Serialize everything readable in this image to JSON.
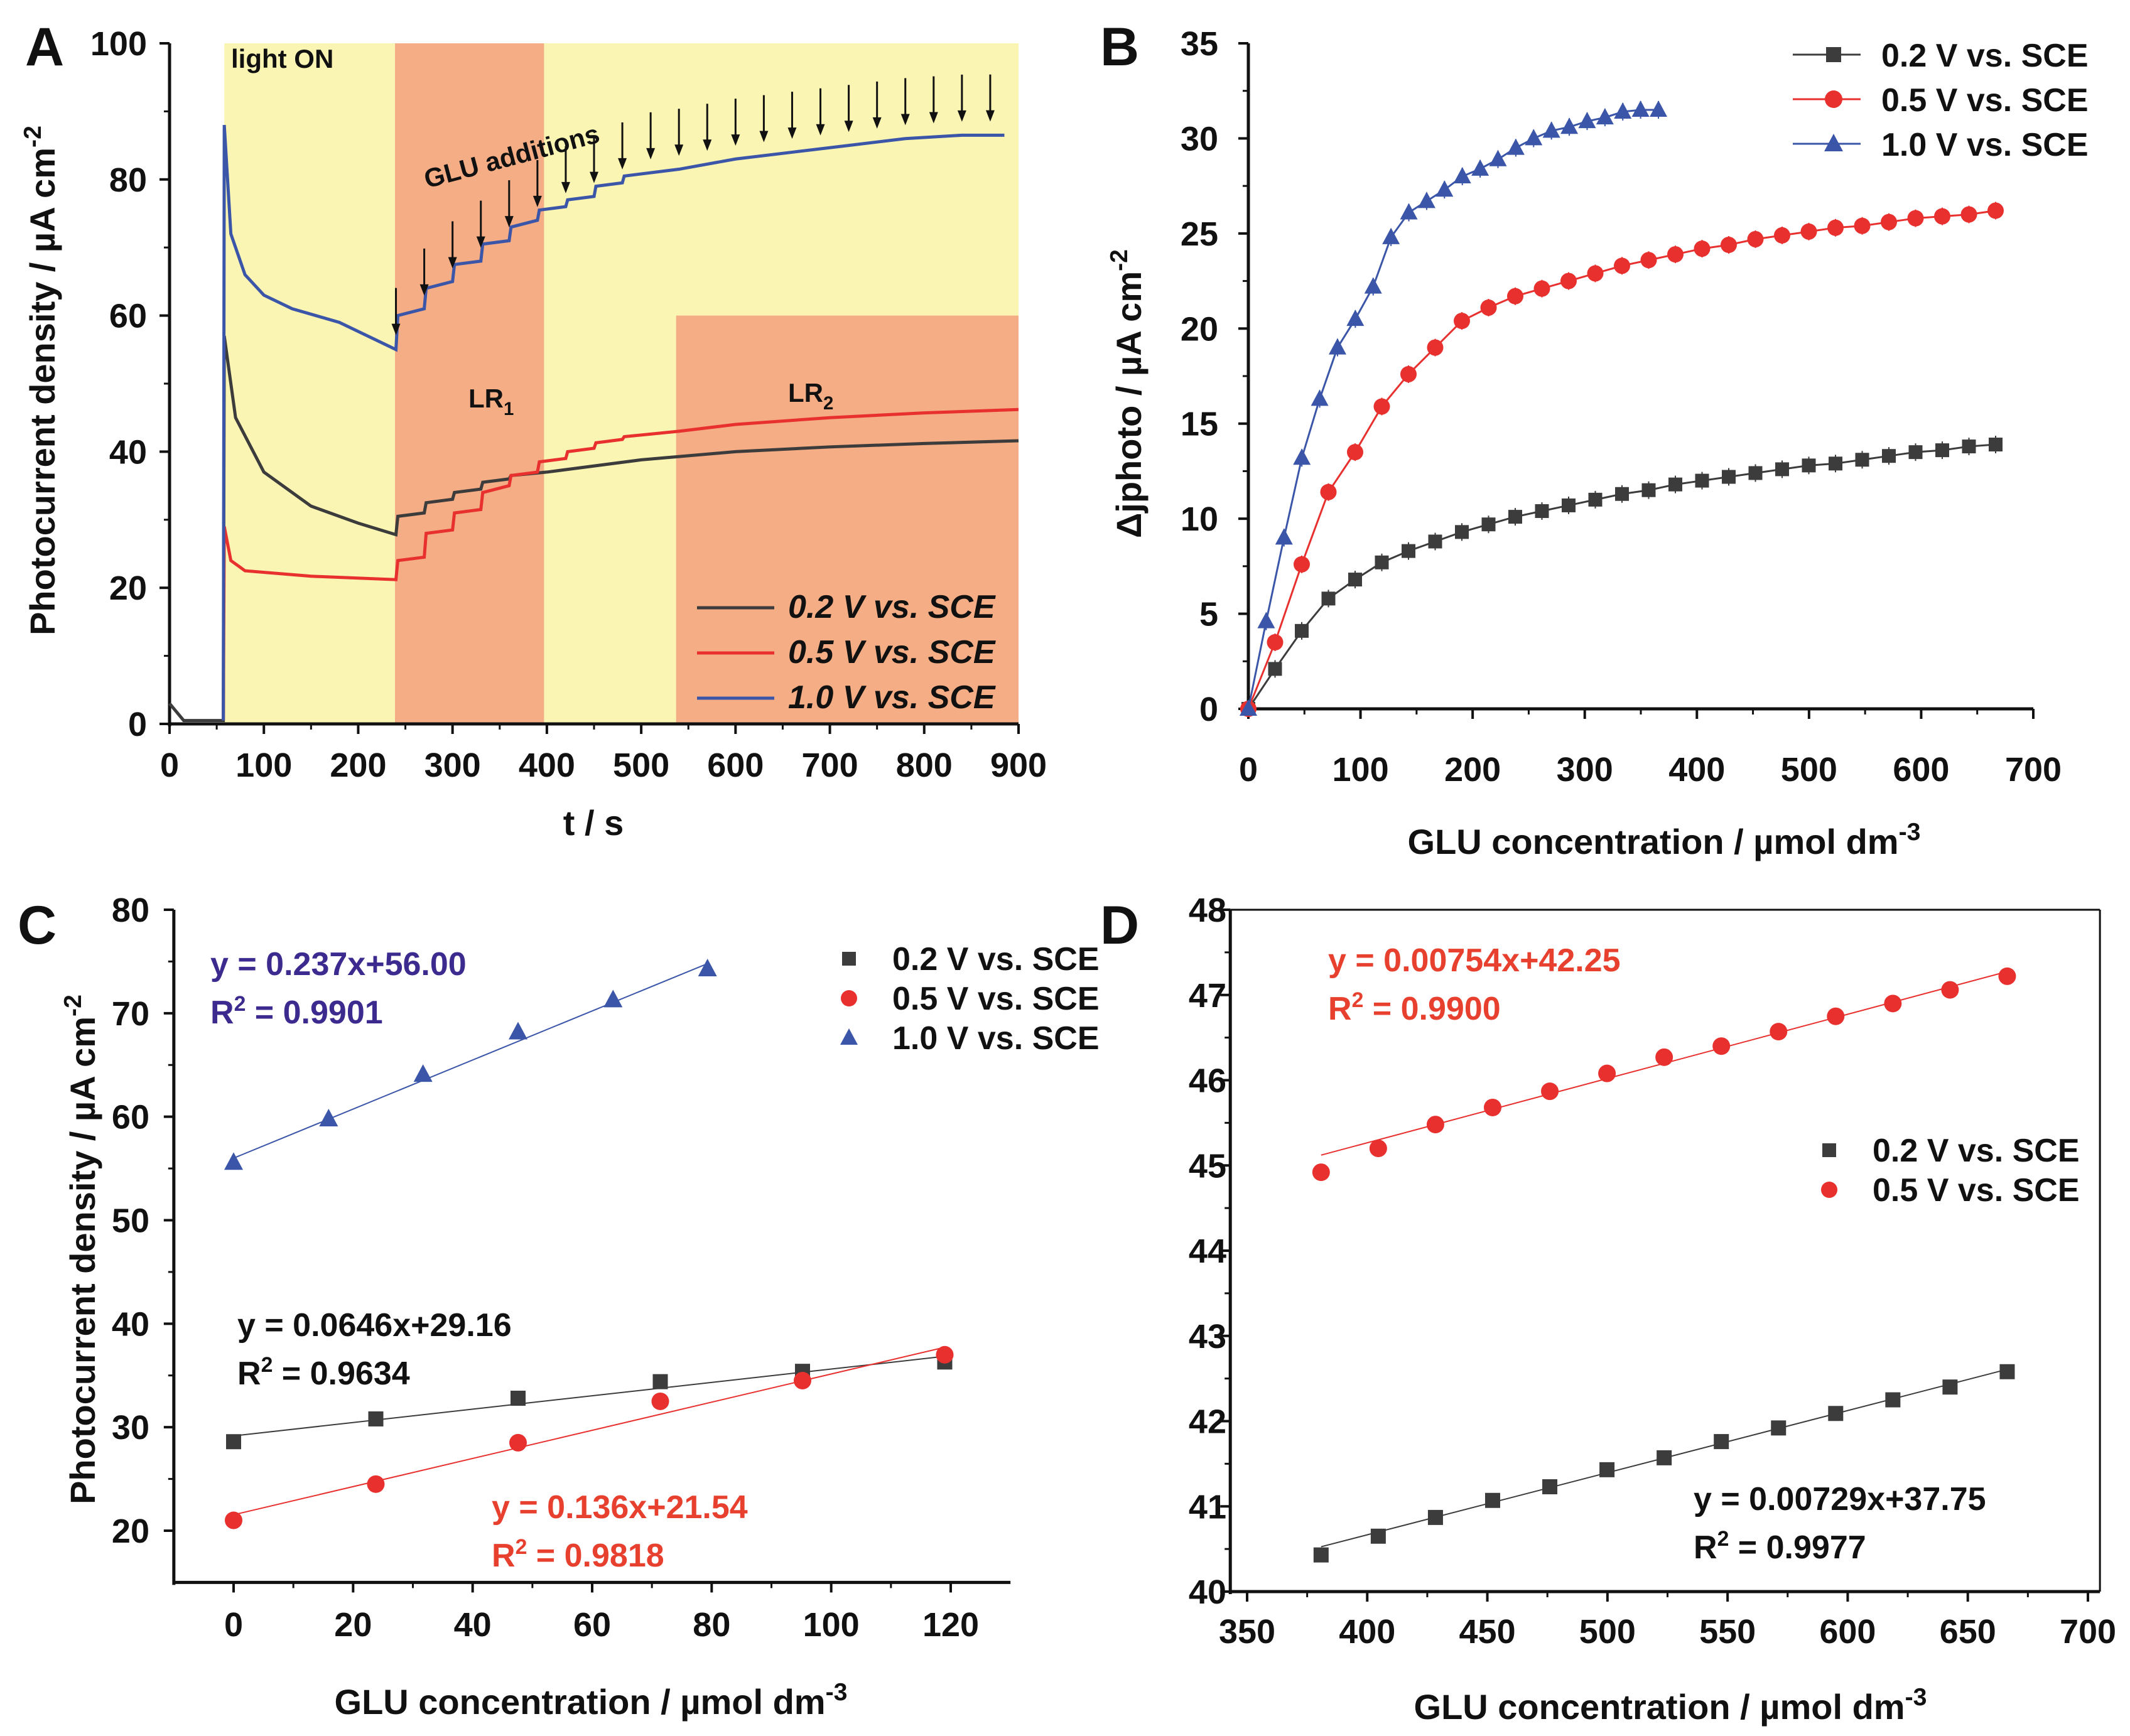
{
  "colors": {
    "black": "#3c3c3c",
    "red": "#e8312f",
    "blue": "#3b56a8",
    "yellow": "#fbf5b4",
    "orange": "#f4ad84",
    "eq_blue": "#3d2a8f",
    "eq_red": "#e8402e"
  },
  "chart_data": [
    {
      "panel": "A",
      "type": "line",
      "xlabel": "t / s",
      "ylabel": "Photocurrent density / µA cm",
      "ylabel_sup": "-2",
      "xlim": [
        0,
        900
      ],
      "ylim": [
        0,
        100
      ],
      "xticks": [
        "0",
        "100",
        "200",
        "300",
        "400",
        "500",
        "600",
        "700",
        "800",
        "900"
      ],
      "yticks": [
        "0",
        "20",
        "40",
        "60",
        "80",
        "100"
      ],
      "regions": [
        {
          "name": "light ON",
          "t": [
            58,
            900
          ],
          "y": [
            0,
            100
          ],
          "color": "yellow"
        },
        {
          "name": "LR1",
          "t": [
            239,
            397
          ],
          "y": [
            0,
            100
          ],
          "color": "orange"
        },
        {
          "name": "LR2",
          "t": [
            537,
            900
          ],
          "y": [
            0,
            60
          ],
          "color": "orange"
        }
      ],
      "annotations": {
        "light_on": "light ON",
        "glu_additions": "GLU additions",
        "lr1": "LR",
        "lr1_sub": "1",
        "lr2": "LR",
        "lr2_sub": "2"
      },
      "arrow_times": [
        240,
        270,
        300,
        330,
        360,
        390,
        420,
        450,
        480,
        510,
        540,
        570,
        600,
        630,
        660,
        690,
        720,
        750,
        780,
        810,
        840,
        870
      ],
      "series": [
        {
          "name": "0.2 V vs. SCE",
          "color": "black",
          "points": [
            [
              0,
              3
            ],
            [
              15,
              0.5
            ],
            [
              57,
              0.5
            ],
            [
              58,
              57
            ],
            [
              70,
              45
            ],
            [
              100,
              37
            ],
            [
              150,
              32
            ],
            [
              200,
              29.5
            ],
            [
              240,
              27.8
            ],
            [
              242,
              30.5
            ],
            [
              270,
              31
            ],
            [
              272,
              32.5
            ],
            [
              300,
              33
            ],
            [
              302,
              34
            ],
            [
              330,
              34.5
            ],
            [
              332,
              35.5
            ],
            [
              360,
              36
            ],
            [
              362,
              36.5
            ],
            [
              400,
              37
            ],
            [
              500,
              38.8
            ],
            [
              600,
              40
            ],
            [
              700,
              40.7
            ],
            [
              800,
              41.2
            ],
            [
              900,
              41.6
            ]
          ]
        },
        {
          "name": "0.5 V vs. SCE",
          "color": "red",
          "points": [
            [
              57,
              0.5
            ],
            [
              58,
              29
            ],
            [
              65,
              24
            ],
            [
              80,
              22.5
            ],
            [
              150,
              21.7
            ],
            [
              240,
              21.2
            ],
            [
              242,
              24
            ],
            [
              270,
              24.5
            ],
            [
              272,
              28
            ],
            [
              300,
              28.5
            ],
            [
              302,
              31
            ],
            [
              330,
              31.5
            ],
            [
              332,
              34
            ],
            [
              360,
              35
            ],
            [
              362,
              36.5
            ],
            [
              390,
              37
            ],
            [
              392,
              38.5
            ],
            [
              420,
              39
            ],
            [
              422,
              40
            ],
            [
              450,
              40.5
            ],
            [
              452,
              41.3
            ],
            [
              480,
              41.8
            ],
            [
              482,
              42.2
            ],
            [
              540,
              43
            ],
            [
              600,
              44
            ],
            [
              700,
              45
            ],
            [
              800,
              45.7
            ],
            [
              900,
              46.2
            ]
          ]
        },
        {
          "name": "1.0 V vs. SCE",
          "color": "blue",
          "points": [
            [
              57,
              0.5
            ],
            [
              58,
              88
            ],
            [
              65,
              72
            ],
            [
              80,
              66
            ],
            [
              100,
              63
            ],
            [
              130,
              61
            ],
            [
              180,
              59
            ],
            [
              240,
              55
            ],
            [
              242,
              60
            ],
            [
              270,
              61
            ],
            [
              272,
              64
            ],
            [
              300,
              65
            ],
            [
              302,
              67.5
            ],
            [
              330,
              68
            ],
            [
              332,
              70.5
            ],
            [
              360,
              71
            ],
            [
              362,
              73
            ],
            [
              390,
              74
            ],
            [
              392,
              75.5
            ],
            [
              420,
              76
            ],
            [
              422,
              77
            ],
            [
              450,
              77.5
            ],
            [
              452,
              79
            ],
            [
              480,
              79.5
            ],
            [
              482,
              80.5
            ],
            [
              540,
              81.5
            ],
            [
              600,
              83
            ],
            [
              660,
              84
            ],
            [
              720,
              85
            ],
            [
              780,
              86
            ],
            [
              840,
              86.5
            ],
            [
              885,
              86.5
            ]
          ]
        }
      ]
    },
    {
      "panel": "B",
      "type": "line",
      "xlabel": "GLU concentration / µmol dm",
      "xlabel_sup": "-3",
      "ylabel": "Δjphoto / µA cm",
      "ylabel_sup": "-2",
      "xlim": [
        0,
        700
      ],
      "ylim": [
        0,
        35
      ],
      "xticks": [
        "0",
        "100",
        "200",
        "300",
        "400",
        "500",
        "600",
        "700"
      ],
      "yticks": [
        "0",
        "5",
        "10",
        "15",
        "20",
        "25",
        "30",
        "35"
      ],
      "series": [
        {
          "name": "0.2 V vs. SCE",
          "color": "black",
          "marker": "square",
          "x_step": 23.8,
          "values": [
            0,
            2.1,
            4.1,
            5.8,
            6.8,
            7.7,
            8.3,
            8.8,
            9.3,
            9.7,
            10.1,
            10.4,
            10.7,
            11.0,
            11.3,
            11.5,
            11.8,
            12.0,
            12.2,
            12.4,
            12.6,
            12.8,
            12.9,
            13.1,
            13.3,
            13.5,
            13.6,
            13.8,
            13.9
          ]
        },
        {
          "name": "0.5 V vs. SCE",
          "color": "red",
          "marker": "circle",
          "x_step": 23.8,
          "values": [
            0,
            3.5,
            7.6,
            11.4,
            13.5,
            15.9,
            17.6,
            19.0,
            20.4,
            21.1,
            21.7,
            22.1,
            22.5,
            22.9,
            23.3,
            23.6,
            23.9,
            24.2,
            24.4,
            24.7,
            24.9,
            25.1,
            25.3,
            25.4,
            25.6,
            25.8,
            25.9,
            26.0,
            26.2
          ]
        },
        {
          "name": "1.0 V vs. SCE",
          "color": "blue",
          "marker": "triangle",
          "x_step": 15.9,
          "values": [
            0,
            4.6,
            9.0,
            13.2,
            16.3,
            19.0,
            20.5,
            22.2,
            24.8,
            26.1,
            26.7,
            27.3,
            28.0,
            28.4,
            28.9,
            29.5,
            30.0,
            30.4,
            30.6,
            30.9,
            31.1,
            31.4,
            31.5,
            31.5
          ]
        }
      ]
    },
    {
      "panel": "C",
      "type": "scatter",
      "xlabel": "GLU concentration / µmol dm",
      "xlabel_sup": "-3",
      "ylabel": "Photocurrent density / µA cm",
      "ylabel_sup": "-2",
      "xlim": [
        -10,
        130
      ],
      "ylim": [
        15,
        80
      ],
      "xticks": [
        "0",
        "20",
        "40",
        "60",
        "80",
        "100",
        "120"
      ],
      "yticks": [
        "20",
        "30",
        "40",
        "50",
        "60",
        "70",
        "80"
      ],
      "series": [
        {
          "name": "0.2 V vs. SCE",
          "color": "black",
          "marker": "square",
          "x": [
            0,
            23.8,
            47.6,
            71.4,
            95.2,
            119
          ],
          "y": [
            28.6,
            30.8,
            32.8,
            34.4,
            35.4,
            36.3
          ],
          "fit": {
            "slope": 0.0646,
            "intercept": 29.16,
            "eq": "y = 0.0646x+29.16",
            "r2_label": "R",
            "r2_sup": "2",
            "r2_val": " = 0.9634"
          }
        },
        {
          "name": "0.5 V vs. SCE",
          "color": "red",
          "marker": "circle",
          "x": [
            0,
            23.8,
            47.6,
            71.4,
            95.2,
            119
          ],
          "y": [
            21.0,
            24.5,
            28.5,
            32.5,
            34.5,
            37.0
          ],
          "fit": {
            "slope": 0.136,
            "intercept": 21.54,
            "eq": "y = 0.136x+21.54",
            "r2_label": "R",
            "r2_sup": "2",
            "r2_val": " = 0.9818"
          }
        },
        {
          "name": "1.0 V vs. SCE",
          "color": "blue",
          "marker": "triangle",
          "x": [
            0,
            15.9,
            31.7,
            47.6,
            63.5,
            79.3
          ],
          "y": [
            55.6,
            59.8,
            64.1,
            68.2,
            71.3,
            74.3
          ],
          "fit": {
            "slope": 0.237,
            "intercept": 56.0,
            "eq": "y = 0.237x+56.00",
            "r2_label": "R",
            "r2_sup": "2",
            "r2_val": " = 0.9901"
          }
        }
      ]
    },
    {
      "panel": "D",
      "type": "scatter",
      "xlabel": "GLU concentration / µmol dm",
      "xlabel_sup": "-3",
      "xlim": [
        343,
        705
      ],
      "ylim": [
        40,
        48
      ],
      "xticks": [
        "350",
        "400",
        "450",
        "500",
        "550",
        "600",
        "650",
        "700"
      ],
      "yticks": [
        "40",
        "41",
        "42",
        "43",
        "44",
        "45",
        "46",
        "47",
        "48"
      ],
      "series": [
        {
          "name": "0.2 V vs. SCE",
          "color": "black",
          "marker": "square",
          "x": [
            380.8,
            404.6,
            428.4,
            452.2,
            476,
            499.8,
            523.6,
            547.4,
            571.2,
            595,
            618.8,
            642.6,
            666.4
          ],
          "y": [
            40.43,
            40.65,
            40.87,
            41.07,
            41.23,
            41.43,
            41.57,
            41.76,
            41.92,
            42.09,
            42.25,
            42.4,
            42.58
          ],
          "fit": {
            "slope": 0.00729,
            "intercept": 37.75,
            "eq": "y = 0.00729x+37.75",
            "r2_label": "R",
            "r2_sup": "2",
            "r2_val": " = 0.9977"
          }
        },
        {
          "name": "0.5 V vs. SCE",
          "color": "red",
          "marker": "circle",
          "x": [
            380.8,
            404.6,
            428.4,
            452.2,
            476,
            499.8,
            523.6,
            547.4,
            571.2,
            595,
            618.8,
            642.6,
            666.4
          ],
          "y": [
            44.92,
            45.2,
            45.48,
            45.68,
            45.87,
            46.08,
            46.27,
            46.4,
            46.57,
            46.75,
            46.9,
            47.06,
            47.22
          ],
          "fit": {
            "slope": 0.00754,
            "intercept": 42.25,
            "eq": "y = 0.00754x+42.25",
            "r2_label": "R",
            "r2_sup": "2",
            "r2_val": " = 0.9900"
          }
        }
      ]
    }
  ]
}
